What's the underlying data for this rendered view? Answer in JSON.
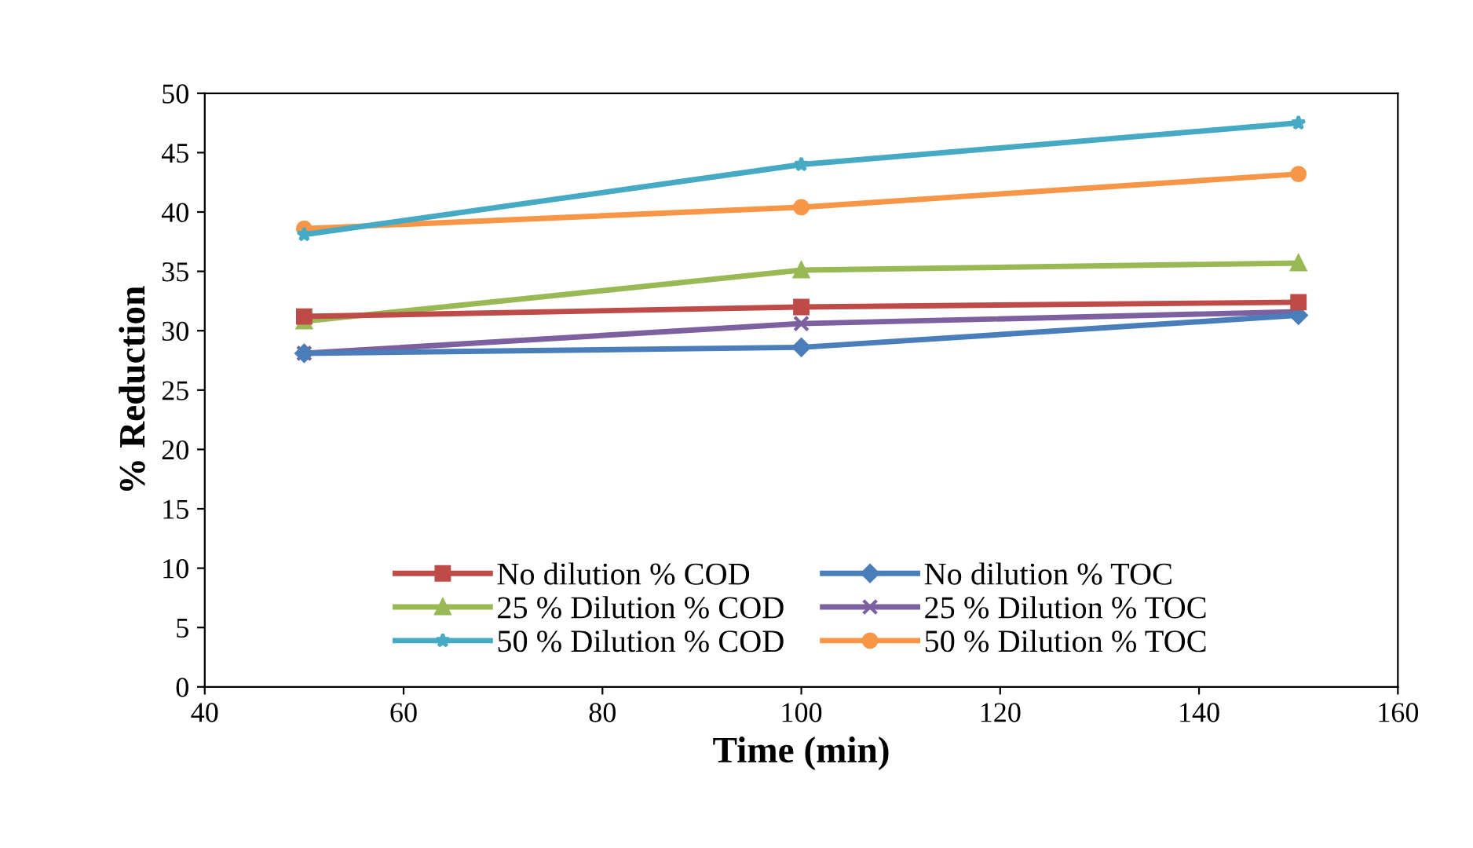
{
  "chart_data": {
    "type": "line",
    "xlabel": "Time (min)",
    "ylabel": "% Reduction",
    "x": [
      50,
      100,
      150
    ],
    "xlim": [
      40,
      160
    ],
    "xticks": [
      40,
      60,
      80,
      100,
      120,
      140,
      160
    ],
    "ylim": [
      0,
      50
    ],
    "yticks": [
      0,
      5,
      10,
      15,
      20,
      25,
      30,
      35,
      40,
      45,
      50
    ],
    "grid": false,
    "legend": "bottom",
    "line_style": "solid",
    "series": [
      {
        "name": "No dilution % COD",
        "color": "#be4b48",
        "marker": "square",
        "values": [
          31.2,
          32.0,
          32.4
        ]
      },
      {
        "name": "No dilution % TOC",
        "color": "#4a7ebb",
        "marker": "diamond",
        "values": [
          28.1,
          28.6,
          31.3
        ]
      },
      {
        "name": "25 % Dilution % COD",
        "color": "#98b954",
        "marker": "triangle",
        "values": [
          30.8,
          35.1,
          35.7
        ]
      },
      {
        "name": "25 % Dilution % TOC",
        "color": "#7d60a0",
        "marker": "cross",
        "values": [
          28.1,
          30.6,
          31.6
        ]
      },
      {
        "name": "50 % Dilution % COD",
        "color": "#46aac5",
        "marker": "star",
        "values": [
          38.1,
          44.0,
          47.5
        ]
      },
      {
        "name": "50 % Dilution % TOC",
        "color": "#f79646",
        "marker": "circle",
        "values": [
          38.6,
          40.4,
          43.2
        ]
      }
    ]
  }
}
